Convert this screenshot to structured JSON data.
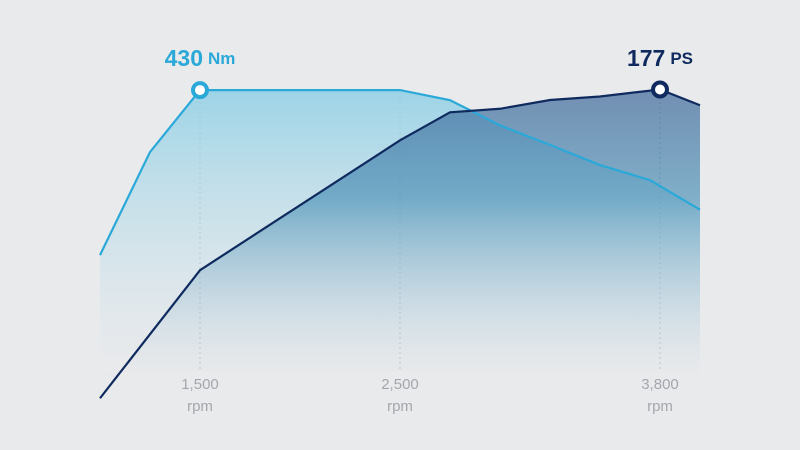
{
  "chart_data": {
    "type": "line",
    "xlim": [
      1000,
      4000
    ],
    "xticks": [
      {
        "value": 1500,
        "label": "1,500"
      },
      {
        "value": 2500,
        "label": "2,500"
      },
      {
        "value": 3800,
        "label": "3,800"
      }
    ],
    "x_unit": "rpm",
    "ylim": [
      0,
      555
    ],
    "y2lim": [
      0,
      228
    ],
    "series": [
      {
        "unit": "Nm",
        "color": "#2aa9d9",
        "x": [
          1000,
          1250,
          1500,
          2000,
          2500,
          2750,
          3000,
          3250,
          3500,
          3750,
          4000
        ],
        "values": [
          201,
          344,
          430,
          430,
          430,
          416,
          381,
          354,
          326,
          305,
          264
        ]
      },
      {
        "unit": "PS",
        "color": "#0f2a5e",
        "axis": "y2",
        "x": [
          1000,
          1500,
          2500,
          2750,
          3000,
          3250,
          3500,
          3800,
          4000
        ],
        "values": [
          1,
          74,
          148,
          164,
          166,
          171,
          173,
          177,
          168
        ]
      }
    ]
  }
}
